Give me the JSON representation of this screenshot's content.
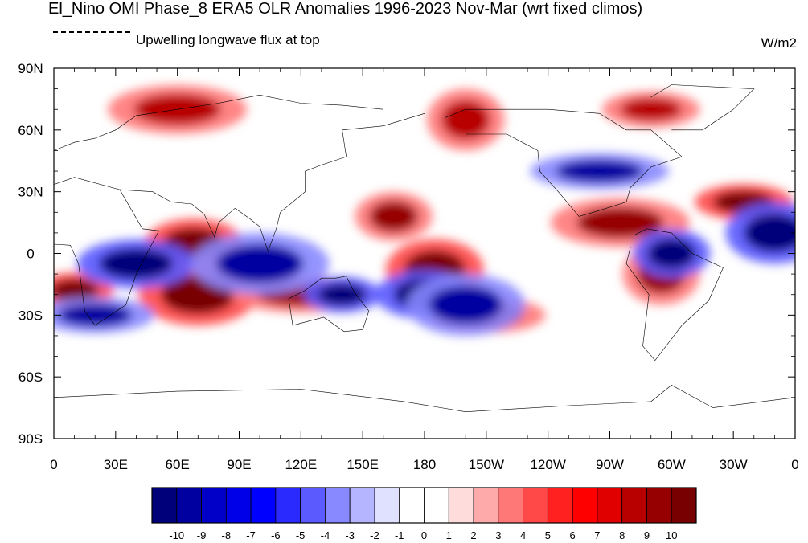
{
  "title": "El_Nino OMI Phase_8 ERA5 OLR Anomalies 1996-2023 Nov-Mar (wrt fixed climos)",
  "subtitle": "Upwelling longwave flux at top",
  "units": "W/m2",
  "chart_data": {
    "type": "heatmap",
    "x_ticks": [
      "0",
      "30E",
      "60E",
      "90E",
      "120E",
      "150E",
      "180",
      "150W",
      "120W",
      "90W",
      "60W",
      "30W",
      "0"
    ],
    "y_ticks": [
      "90N",
      "60N",
      "30N",
      "0",
      "30S",
      "60S",
      "90S"
    ],
    "xlim": [
      0,
      360
    ],
    "ylim": [
      -90,
      90
    ],
    "colorbar": {
      "labels": [
        "-10",
        "-9",
        "-8",
        "-7",
        "-6",
        "-5",
        "-4",
        "-3",
        "-2",
        "-1",
        "0",
        "1",
        "2",
        "3",
        "4",
        "5",
        "6",
        "7",
        "8",
        "9",
        "10"
      ],
      "colors": [
        "#00007a",
        "#0000a0",
        "#0000c8",
        "#0000e8",
        "#0000ff",
        "#2a2aff",
        "#5a5aff",
        "#8888ff",
        "#b4b4ff",
        "#e0e0ff",
        "#ffffff",
        "#ffffff",
        "#ffdcdc",
        "#ffaaaa",
        "#ff7878",
        "#ff4848",
        "#ff2020",
        "#ff0000",
        "#e00000",
        "#b80000",
        "#960000",
        "#780000"
      ]
    },
    "anomaly_features": [
      {
        "lon": 10,
        "lat": -18,
        "value": 10
      },
      {
        "lon": 68,
        "lat": 5,
        "value": 10
      },
      {
        "lon": 70,
        "lat": -20,
        "value": 10
      },
      {
        "lon": 120,
        "lat": -20,
        "value": 9
      },
      {
        "lon": 165,
        "lat": 18,
        "value": 9
      },
      {
        "lon": 185,
        "lat": -8,
        "value": 10
      },
      {
        "lon": 210,
        "lat": -30,
        "value": 8
      },
      {
        "lon": 275,
        "lat": 15,
        "value": 9
      },
      {
        "lon": 295,
        "lat": -10,
        "value": 9
      },
      {
        "lon": 335,
        "lat": 25,
        "value": 10
      },
      {
        "lon": 40,
        "lat": -5,
        "value": -10
      },
      {
        "lon": 100,
        "lat": -5,
        "value": -9
      },
      {
        "lon": 140,
        "lat": -20,
        "value": -10
      },
      {
        "lon": 180,
        "lat": -20,
        "value": -10
      },
      {
        "lon": 200,
        "lat": -25,
        "value": -9
      },
      {
        "lon": 265,
        "lat": 40,
        "value": -9
      },
      {
        "lon": 300,
        "lat": 0,
        "value": -10
      },
      {
        "lon": 350,
        "lat": 10,
        "value": -10
      },
      {
        "lon": 20,
        "lat": -30,
        "value": -9
      },
      {
        "lon": 60,
        "lat": 70,
        "value": 8
      },
      {
        "lon": 200,
        "lat": 65,
        "value": 8
      },
      {
        "lon": 290,
        "lat": 70,
        "value": 8
      }
    ]
  }
}
